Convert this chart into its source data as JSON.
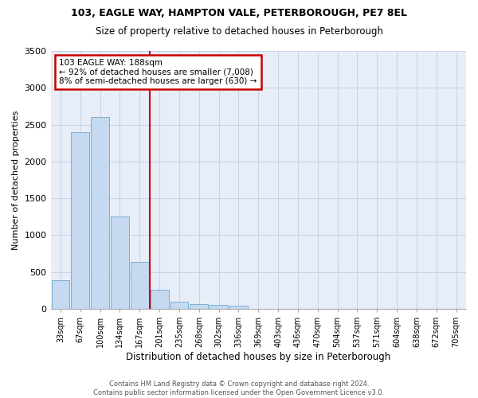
{
  "title1": "103, EAGLE WAY, HAMPTON VALE, PETERBOROUGH, PE7 8EL",
  "title2": "Size of property relative to detached houses in Peterborough",
  "xlabel": "Distribution of detached houses by size in Peterborough",
  "ylabel": "Number of detached properties",
  "footer1": "Contains HM Land Registry data © Crown copyright and database right 2024.",
  "footer2": "Contains public sector information licensed under the Open Government Licence v3.0.",
  "bar_labels": [
    "33sqm",
    "67sqm",
    "100sqm",
    "134sqm",
    "167sqm",
    "201sqm",
    "235sqm",
    "268sqm",
    "302sqm",
    "336sqm",
    "369sqm",
    "403sqm",
    "436sqm",
    "470sqm",
    "504sqm",
    "537sqm",
    "571sqm",
    "604sqm",
    "638sqm",
    "672sqm",
    "705sqm"
  ],
  "bar_values": [
    390,
    2400,
    2600,
    1250,
    640,
    260,
    100,
    65,
    55,
    40,
    0,
    0,
    0,
    0,
    0,
    0,
    0,
    0,
    0,
    0,
    0
  ],
  "bar_color": "#c5d9f0",
  "bar_edge_color": "#7bafd4",
  "grid_color": "#c8d4e8",
  "background_color": "#e8eef8",
  "vline_x": 4.5,
  "vline_color": "#cc0000",
  "annotation_text": "103 EAGLE WAY: 188sqm\n← 92% of detached houses are smaller (7,008)\n8% of semi-detached houses are larger (630) →",
  "annotation_box_color": "#cc0000",
  "ylim": [
    0,
    3500
  ],
  "yticks": [
    0,
    500,
    1000,
    1500,
    2000,
    2500,
    3000,
    3500
  ]
}
